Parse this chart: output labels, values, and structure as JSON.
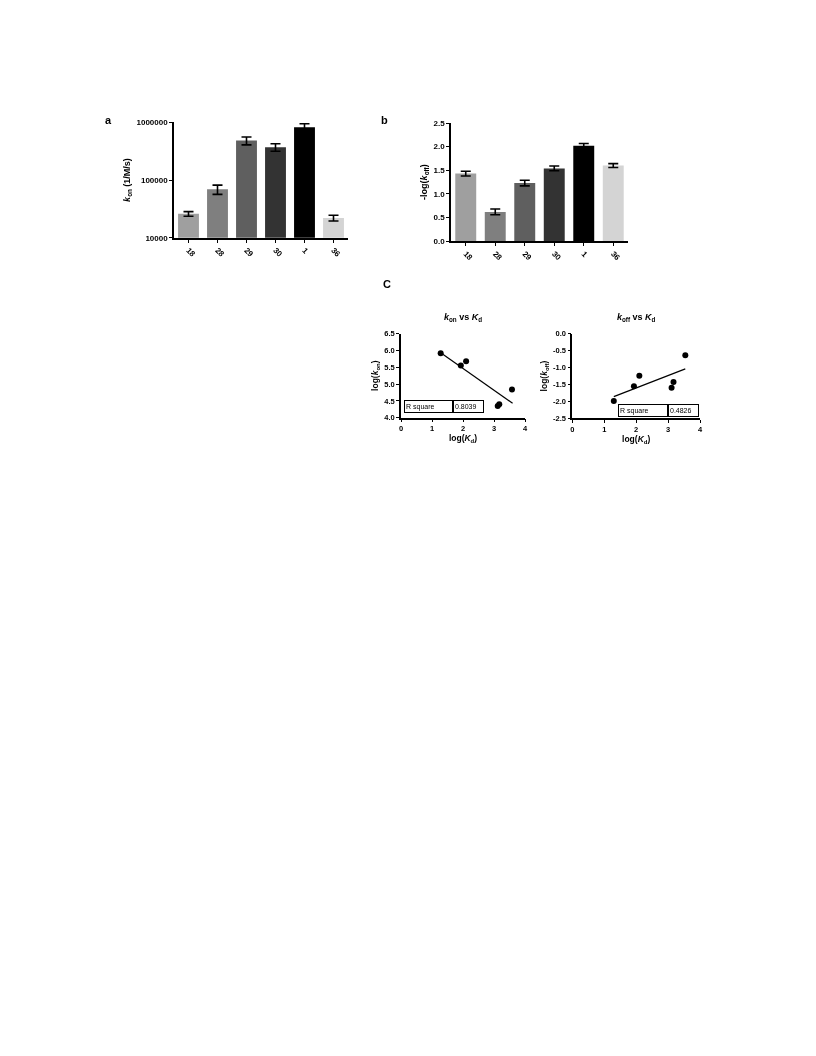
{
  "chart_data": [
    {
      "type": "bar",
      "annotations": [
        "a"
      ],
      "ylabel": "k$_{on}$ (1/M/s)",
      "categories": [
        "18",
        "28",
        "29",
        "30",
        "1",
        "36"
      ],
      "values": [
        26000,
        69000,
        480000,
        370000,
        820000,
        22000
      ],
      "colors": [
        "#9f9f9f",
        "#7f7f7f",
        "#5f5f5f",
        "#333333",
        "#000000",
        "#d4d4d4"
      ],
      "errors": [
        2400,
        12500,
        75000,
        55000,
        120000,
        2500
      ],
      "log": true,
      "ylim": [
        10000,
        1000000
      ],
      "yticks": [
        10000,
        100000,
        1000000
      ],
      "grid": false,
      "legend": false
    },
    {
      "type": "bar",
      "annotations": [
        "b"
      ],
      "ylabel": "-log(k$_{off}$)",
      "categories": [
        "18",
        "28",
        "29",
        "30",
        "1",
        "36"
      ],
      "values": [
        1.43,
        0.62,
        1.23,
        1.54,
        2.02,
        1.6
      ],
      "colors": [
        "#9f9f9f",
        "#7f7f7f",
        "#5f5f5f",
        "#333333",
        "#000000",
        "#d4d4d4"
      ],
      "errors": [
        0.05,
        0.06,
        0.06,
        0.05,
        0.045,
        0.04
      ],
      "ylim": [
        0,
        2.5
      ],
      "yticks": [
        {
          "value": 0,
          "label": "0.0"
        },
        0.5,
        {
          "value": 1,
          "label": "1.0"
        },
        1.5,
        {
          "value": 2,
          "label": "2.0"
        },
        2.5
      ],
      "grid": false,
      "legend": false
    },
    {
      "type": "scatter",
      "annotations": [
        "C",
        "R square",
        "0.8039"
      ],
      "title": "k$_{on}$ vs K$_{d}$",
      "xlabel": "log(K$_{d}$)",
      "ylabel": "log(k$_{on}$)",
      "series": [
        {
          "type": "scatter",
          "marker": "circle",
          "color": "#000000",
          "x": [
            1.28,
            1.93,
            2.1,
            3.12,
            3.17,
            3.58
          ],
          "values": [
            5.92,
            5.55,
            5.68,
            4.35,
            4.4,
            4.84
          ]
        },
        {
          "type": "line",
          "marker": "none",
          "line_style": "solid",
          "color": "#000000",
          "x": [
            1.28,
            3.6
          ],
          "values": [
            5.93,
            4.43
          ]
        }
      ],
      "xlim": [
        0,
        4
      ],
      "xticks": [
        0,
        1,
        2,
        3,
        4
      ],
      "ylim": [
        4,
        6.5
      ],
      "yticks": [
        {
          "value": 4,
          "label": "4.0"
        },
        4.5,
        {
          "value": 5,
          "label": "5.0"
        },
        5.5,
        {
          "value": 6,
          "label": "6.0"
        },
        6.5
      ],
      "grid": false,
      "legend": false
    },
    {
      "type": "scatter",
      "annotations": [
        "R square",
        "0.4826"
      ],
      "title": "k$_{off}$ vs K$_{d}$",
      "xlabel": "log(K$_{d}$)",
      "ylabel": "log(k$_{off}$)",
      "series": [
        {
          "type": "scatter",
          "marker": "circle",
          "color": "#000000",
          "x": [
            1.3,
            1.93,
            2.1,
            3.11,
            3.17,
            3.54
          ],
          "values": [
            -1.99,
            -1.55,
            -1.24,
            -1.6,
            -1.43,
            -0.64
          ]
        },
        {
          "type": "line",
          "marker": "none",
          "line_style": "solid",
          "color": "#000000",
          "x": [
            1.3,
            3.54
          ],
          "values": [
            -1.86,
            -1.04
          ]
        }
      ],
      "xlim": [
        0,
        4
      ],
      "xticks": [
        0,
        1,
        2,
        3,
        4
      ],
      "ylim": [
        -2.5,
        0
      ],
      "yticks": [
        {
          "value": -2.5,
          "label": "-2.5"
        },
        {
          "value": -2,
          "label": "-2.0"
        },
        -1.5,
        {
          "value": -1,
          "label": "-1.0"
        },
        -0.5,
        {
          "value": 0,
          "label": "0.0"
        }
      ],
      "grid": false,
      "legend": false
    }
  ]
}
